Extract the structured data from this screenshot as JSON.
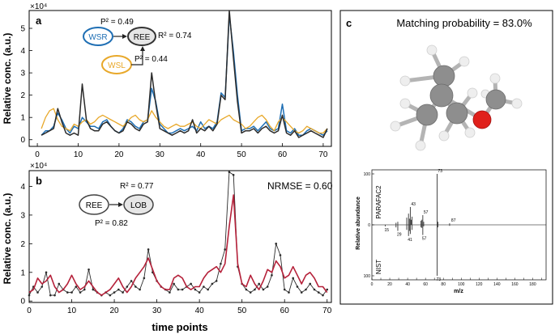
{
  "colors": {
    "wsr": "#1f6fb4",
    "ree": "#2b2b2b",
    "wsl": "#e8a82a",
    "lob": "#b5213a",
    "molecule_c": "#8c8c8c",
    "molecule_o": "#e0201b",
    "molecule_h": "#e6e6e6"
  },
  "panel_a": {
    "label": "a",
    "multiplier": "×10⁴",
    "ylabel": "Relative conc. (a.u.)",
    "p2_wsr": "P² = 0.49",
    "r2": "R² = 0.74",
    "p2_wsl": "P² = 0.44",
    "node_wsr": "WSR",
    "node_ree": "REE",
    "node_wsl": "WSL"
  },
  "panel_b": {
    "label": "b",
    "multiplier": "×10⁴",
    "ylabel": "Relative conc. (a.u.)",
    "xlabel": "time points",
    "r2": "R² = 0.77",
    "p2": "P² = 0.82",
    "nrmse": "NRMSE = 0.60",
    "node_ree": "REE",
    "node_lob": "LOB"
  },
  "panel_c": {
    "label": "c",
    "title": "Matching probability = 83.0%",
    "spec_ylabel": "Relative abundance",
    "spec_xlabel": "m/z",
    "top_label": "PARAFAC2",
    "bottom_label": "NIST"
  },
  "chart_data": [
    {
      "id": "a",
      "type": "line",
      "xlim": [
        -2,
        72
      ],
      "ylim": [
        -0.3,
        5.8
      ],
      "xticks": [
        0,
        10,
        20,
        30,
        40,
        50,
        60,
        70
      ],
      "yticks": [
        0,
        1,
        2,
        3,
        4,
        5
      ],
      "ytick_labels": [
        "0",
        "1",
        "2",
        "3",
        "4",
        "5"
      ],
      "x_start": 1,
      "series": [
        {
          "name": "WSR",
          "color": "#1f6fb4",
          "values": [
            0.2,
            0.4,
            0.4,
            0.6,
            1.2,
            0.9,
            0.5,
            0.3,
            0.6,
            0.5,
            1.0,
            0.8,
            0.6,
            0.6,
            0.5,
            0.8,
            0.9,
            0.6,
            0.4,
            0.3,
            0.5,
            0.9,
            0.8,
            0.6,
            0.5,
            0.8,
            0.9,
            2.3,
            1.7,
            0.7,
            0.5,
            0.3,
            0.3,
            0.4,
            0.5,
            0.4,
            0.5,
            0.6,
            0.4,
            0.8,
            0.5,
            0.6,
            0.5,
            0.8,
            2.1,
            1.9,
            5.6,
            4.0,
            2.0,
            0.4,
            0.5,
            0.5,
            0.6,
            0.4,
            0.6,
            0.8,
            0.5,
            0.4,
            0.5,
            1.6,
            0.4,
            0.3,
            0.5,
            0.2,
            0.2,
            0.4,
            0.5,
            0.4,
            0.3,
            0.2,
            0.4
          ]
        },
        {
          "name": "WSL",
          "color": "#e8a82a",
          "values": [
            0.5,
            1.0,
            1.3,
            1.4,
            0.9,
            0.6,
            0.5,
            0.4,
            0.7,
            0.6,
            0.8,
            0.9,
            0.7,
            0.8,
            1.0,
            1.1,
            1.0,
            0.9,
            0.8,
            0.7,
            0.6,
            0.8,
            1.0,
            1.1,
            0.9,
            0.8,
            0.9,
            1.3,
            1.0,
            0.8,
            0.6,
            0.5,
            0.6,
            0.7,
            0.6,
            0.6,
            0.7,
            0.8,
            0.6,
            0.5,
            0.7,
            0.9,
            0.8,
            0.7,
            0.9,
            1.0,
            1.1,
            0.9,
            0.8,
            0.7,
            0.5,
            0.6,
            0.8,
            1.0,
            1.1,
            0.9,
            0.6,
            0.4,
            0.8,
            1.0,
            0.8,
            0.6,
            0.4,
            0.3,
            0.4,
            0.6,
            0.5,
            0.4,
            0.3,
            0.3,
            0.5
          ]
        },
        {
          "name": "REE",
          "color": "#2b2b2b",
          "values": [
            0.2,
            0.3,
            0.4,
            0.5,
            1.4,
            0.8,
            0.3,
            0.2,
            0.3,
            0.2,
            2.5,
            0.9,
            0.5,
            0.4,
            0.4,
            0.7,
            0.8,
            0.6,
            0.4,
            0.3,
            0.4,
            0.8,
            0.7,
            0.5,
            0.4,
            0.7,
            0.8,
            3.0,
            1.6,
            0.5,
            0.4,
            0.3,
            0.2,
            0.3,
            0.4,
            0.3,
            0.4,
            0.9,
            0.3,
            0.5,
            0.4,
            0.6,
            0.4,
            0.7,
            2.0,
            1.8,
            5.8,
            3.7,
            1.7,
            0.3,
            0.4,
            0.4,
            0.5,
            0.3,
            0.5,
            0.6,
            0.4,
            0.3,
            0.4,
            1.1,
            0.3,
            0.2,
            0.4,
            0.1,
            0.2,
            0.3,
            0.4,
            0.3,
            0.2,
            0.1,
            0.5
          ]
        }
      ]
    },
    {
      "id": "b",
      "type": "line",
      "xlim": [
        0,
        71
      ],
      "ylim": [
        -0.05,
        4.55
      ],
      "xticks": [
        0,
        10,
        20,
        30,
        40,
        50,
        60,
        70
      ],
      "xtick_labels": [
        "0",
        "10",
        "20",
        "30",
        "40",
        "50",
        "60",
        "70"
      ],
      "yticks": [
        0,
        1,
        2,
        3,
        4
      ],
      "ytick_labels": [
        "0",
        "1",
        "2",
        "3",
        "4"
      ],
      "x_start": 0,
      "series": [
        {
          "name": "REE",
          "color": "#2b2b2b",
          "values": [
            0.2,
            0.5,
            0.3,
            0.5,
            1.0,
            0.2,
            0.2,
            0.6,
            0.4,
            0.3,
            0.3,
            0.5,
            0.3,
            0.4,
            1.1,
            0.4,
            0.3,
            0.2,
            0.3,
            0.2,
            0.3,
            0.4,
            0.3,
            0.5,
            0.7,
            0.5,
            0.4,
            0.8,
            1.8,
            1.0,
            0.7,
            0.5,
            0.4,
            0.3,
            0.6,
            0.4,
            0.4,
            0.5,
            0.6,
            0.4,
            0.3,
            0.5,
            0.4,
            0.6,
            0.7,
            1.3,
            1.8,
            4.5,
            4.4,
            1.2,
            0.6,
            0.4,
            0.3,
            0.4,
            0.6,
            0.4,
            0.5,
            0.9,
            2.0,
            1.6,
            0.4,
            0.3,
            0.8,
            0.5,
            0.3,
            0.4,
            0.6,
            0.4,
            0.3,
            0.2,
            0.4
          ]
        },
        {
          "name": "LOB",
          "color": "#b5213a",
          "values": [
            0.3,
            0.4,
            0.8,
            0.6,
            0.7,
            0.9,
            0.5,
            0.3,
            0.4,
            0.6,
            0.9,
            0.6,
            0.4,
            0.5,
            0.7,
            0.5,
            0.3,
            0.2,
            0.3,
            0.4,
            0.6,
            0.8,
            0.5,
            0.3,
            0.5,
            0.8,
            1.0,
            1.2,
            1.5,
            1.1,
            0.7,
            0.5,
            0.4,
            0.4,
            0.8,
            0.9,
            0.8,
            0.5,
            0.4,
            0.5,
            0.5,
            0.8,
            1.0,
            1.1,
            1.2,
            1.0,
            1.3,
            2.6,
            3.7,
            1.3,
            0.6,
            0.5,
            0.9,
            0.6,
            0.4,
            0.7,
            1.1,
            1.0,
            1.4,
            1.2,
            0.8,
            0.9,
            1.2,
            0.9,
            0.6,
            0.9,
            1.0,
            0.8,
            0.5,
            0.5,
            0.3
          ]
        }
      ]
    },
    {
      "id": "c",
      "type": "bar",
      "xlim": [
        0,
        195
      ],
      "xticks": [
        0,
        10,
        20,
        30,
        40,
        50,
        60,
        70,
        80,
        90,
        100,
        110,
        120,
        130,
        140,
        150,
        160,
        170,
        180,
        190
      ],
      "xtick_labels": [
        "0",
        "",
        "20",
        "",
        "40",
        "",
        "60",
        "",
        "80",
        "",
        "100",
        "",
        "120",
        "",
        "140",
        "",
        "160",
        "",
        "180",
        ""
      ],
      "ylim": [
        -100,
        100
      ],
      "yticks": [
        -100,
        0,
        100
      ],
      "ytick_labels": [
        "100",
        "0",
        "100"
      ],
      "peak_labels_top": {
        "43": "43",
        "57": "57",
        "73": "73",
        "87": "87"
      },
      "peak_labels_bottom": {
        "15": "15",
        "29": "29",
        "41": "41",
        "57": "57",
        "73": "73"
      },
      "series": [
        {
          "name": "PARAFAC2",
          "mz": [
            27,
            29,
            39,
            41,
            42,
            43,
            44,
            45,
            55,
            56,
            57,
            58,
            73,
            74,
            87
          ],
          "intensity": [
            4,
            6,
            14,
            22,
            12,
            35,
            10,
            16,
            8,
            10,
            19,
            6,
            100,
            6,
            3
          ]
        },
        {
          "name": "NIST",
          "mz": [
            15,
            27,
            29,
            39,
            41,
            42,
            43,
            45,
            55,
            56,
            57,
            58,
            73,
            74,
            87
          ],
          "intensity": [
            3,
            5,
            12,
            10,
            22,
            12,
            18,
            10,
            5,
            6,
            20,
            3,
            100,
            5,
            2
          ]
        }
      ]
    }
  ]
}
